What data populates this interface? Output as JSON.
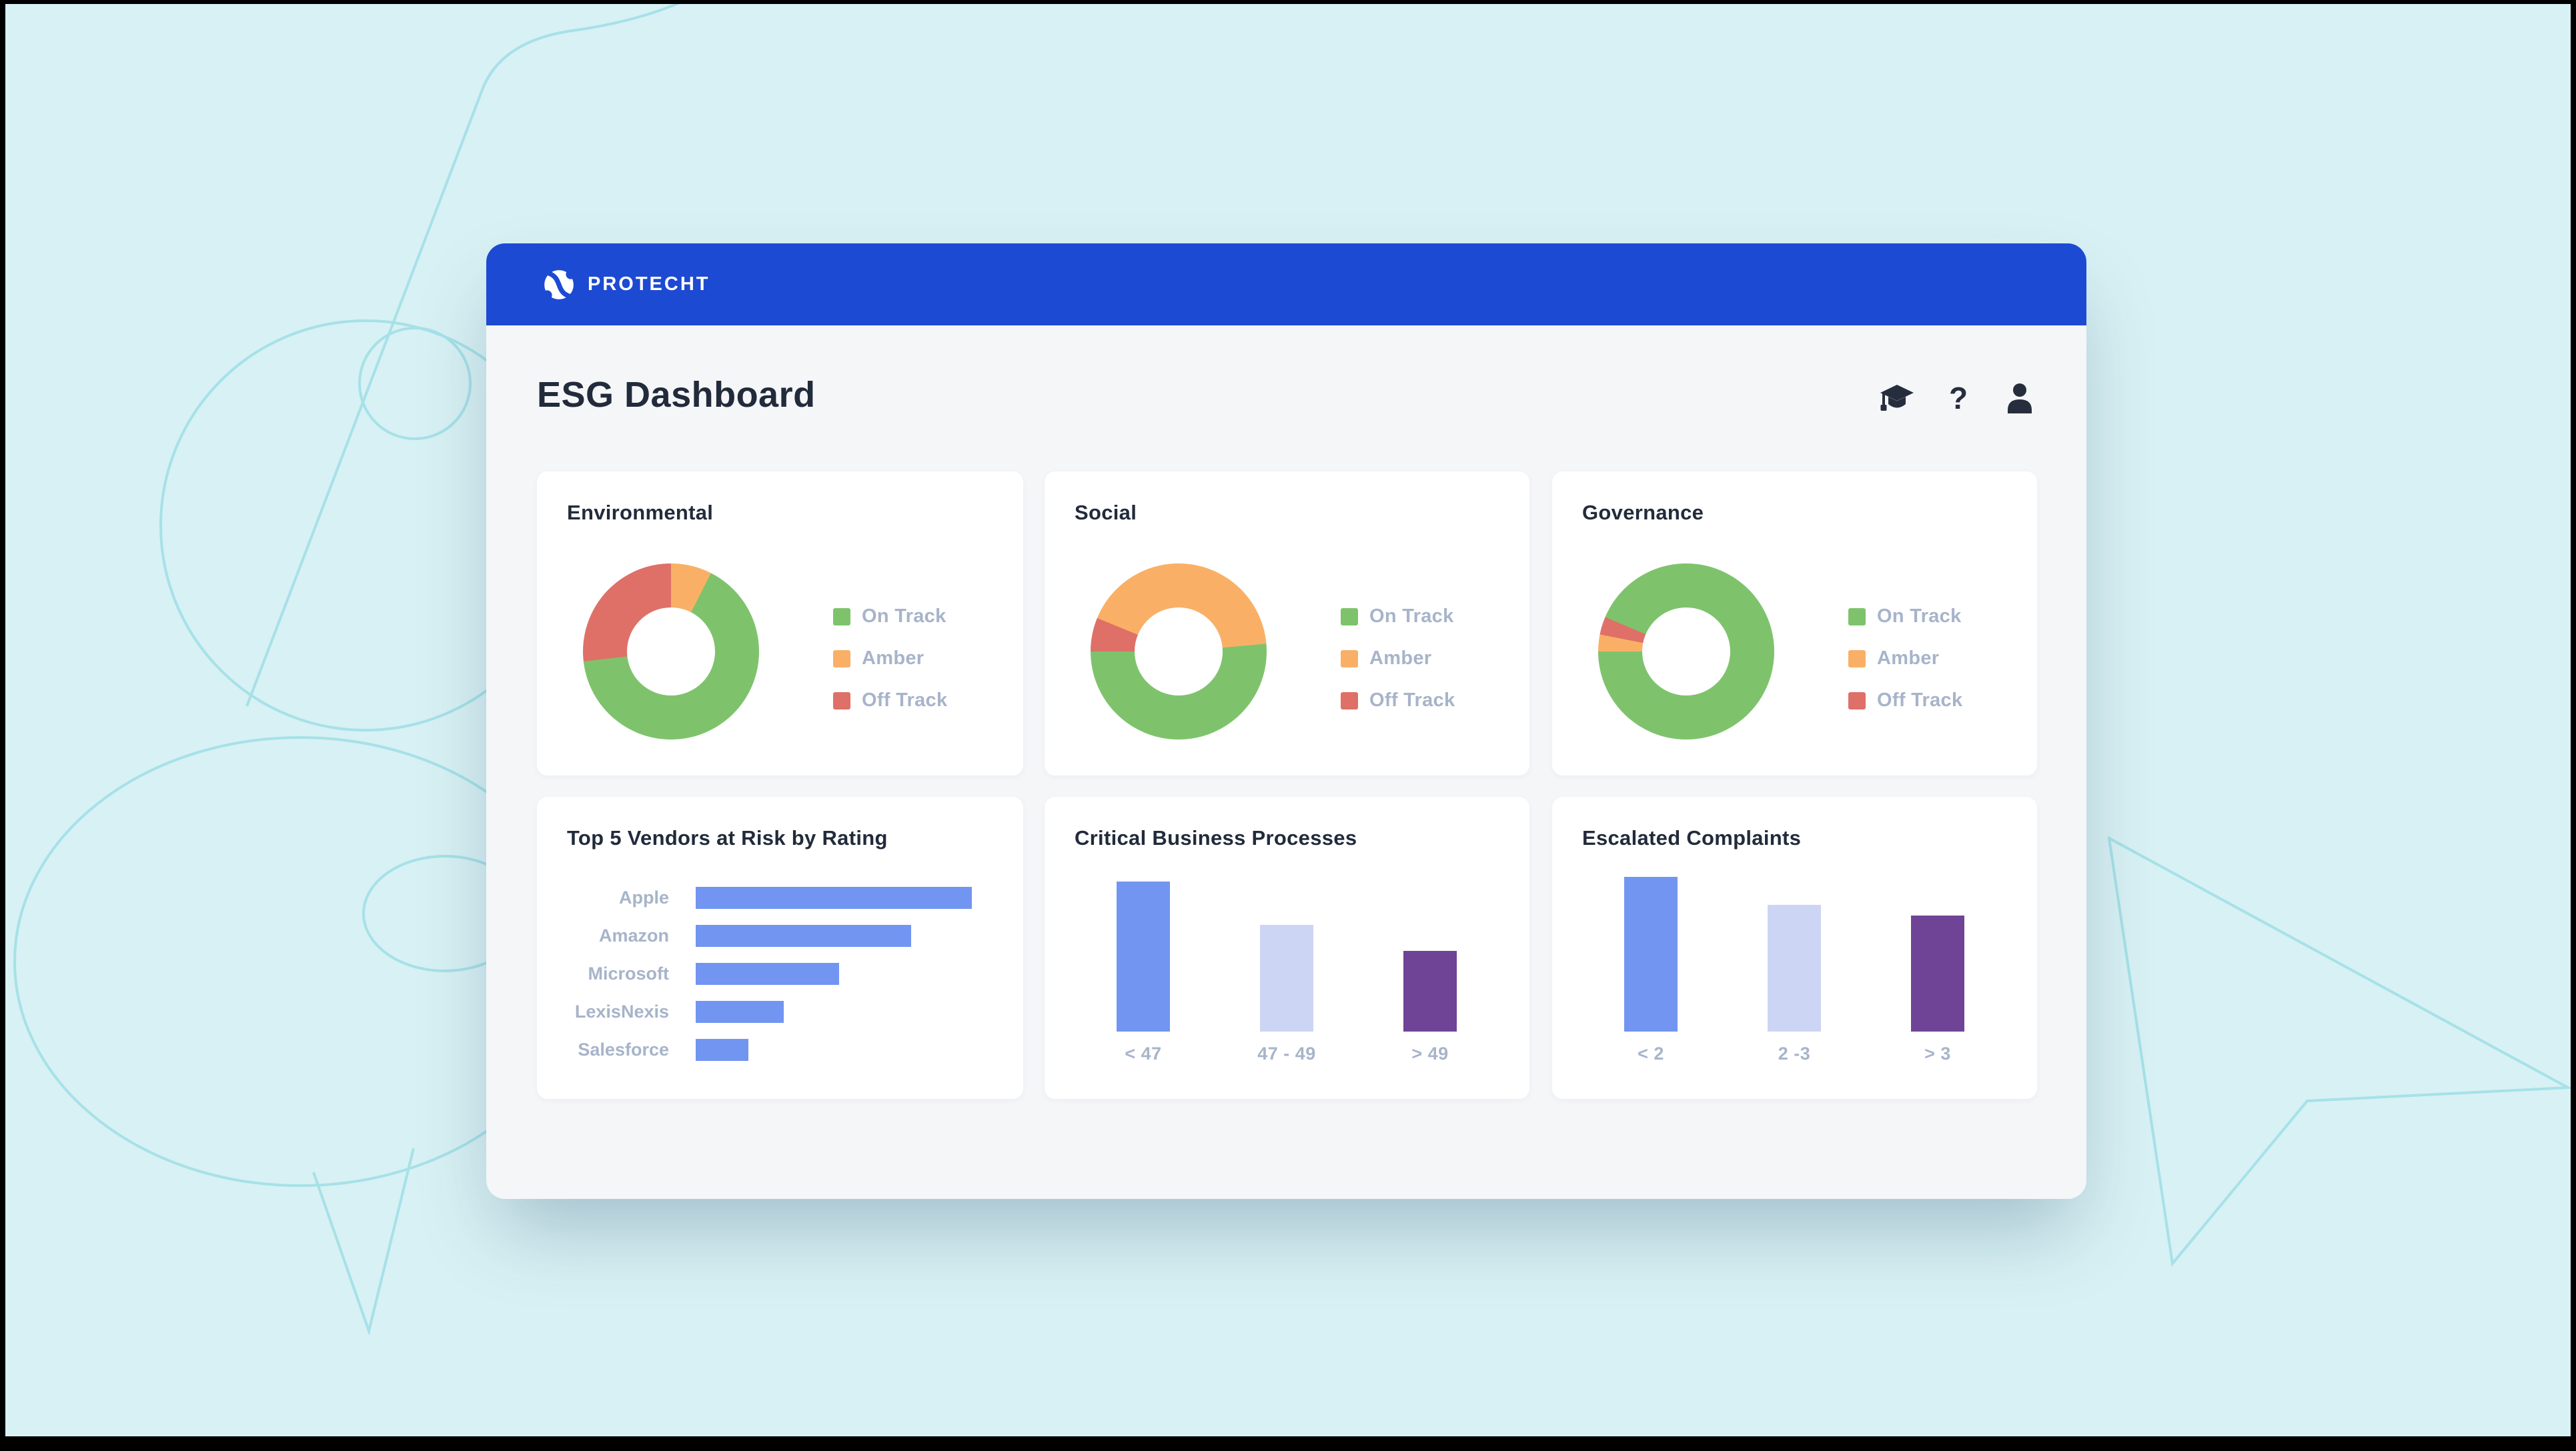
{
  "colors": {
    "pageBg": "#d8f1f4",
    "decoStroke": "#a6e1e8",
    "frame": "#000000",
    "headerBlue": "#1d4ad3",
    "windowBg": "#f5f6f8",
    "cardBg": "#ffffff",
    "titleDark": "#222b3b",
    "mutedText": "#a7b4c9",
    "green": "#7ec36c",
    "amber": "#f9b066",
    "red": "#de7068",
    "barBlue": "#7295f2",
    "barLight": "#ccd5f4",
    "barPurple": "#6f4496",
    "white": "#ffffff"
  },
  "brand": {
    "logo_text": "PROTECHT"
  },
  "header": {
    "title": "ESG Dashboard",
    "icons": [
      {
        "name": "graduation-cap"
      },
      {
        "name": "help"
      },
      {
        "name": "user"
      }
    ]
  },
  "donut_legend": [
    "On Track",
    "Amber",
    "Off Track"
  ],
  "chart_data": [
    {
      "id": "environmental",
      "type": "pie",
      "title": "Environmental",
      "labels": [
        "On Track",
        "Amber",
        "Off Track"
      ],
      "values": [
        66,
        7,
        27
      ],
      "hole": 0.5,
      "legend_position": "right",
      "segments": [
        {
          "color": "amber",
          "from": 0,
          "to": 0.075
        },
        {
          "color": "green",
          "from": 0.075,
          "to": 0.732
        },
        {
          "color": "red",
          "from": 0.732,
          "to": 1
        }
      ]
    },
    {
      "id": "social",
      "type": "pie",
      "title": "Social",
      "labels": [
        "On Track",
        "Amber",
        "Off Track"
      ],
      "values": [
        51,
        43,
        6
      ],
      "hole": 0.5,
      "legend_position": "right",
      "segments": [
        {
          "color": "amber",
          "from": 0,
          "to": 0.236
        },
        {
          "color": "green",
          "from": 0.236,
          "to": 0.75
        },
        {
          "color": "red",
          "from": 0.75,
          "to": 0.812
        },
        {
          "color": "amber",
          "from": 0.812,
          "to": 1
        }
      ]
    },
    {
      "id": "governance",
      "type": "pie",
      "title": "Governance",
      "labels": [
        "On Track",
        "Amber",
        "Off Track"
      ],
      "values": [
        94,
        3,
        3
      ],
      "hole": 0.5,
      "legend_position": "right",
      "segments": [
        {
          "color": "green",
          "from": 0,
          "to": 0.75
        },
        {
          "color": "amber",
          "from": 0.75,
          "to": 0.781
        },
        {
          "color": "red",
          "from": 0.781,
          "to": 0.814
        },
        {
          "color": "green",
          "from": 0.814,
          "to": 1
        }
      ]
    },
    {
      "id": "vendors",
      "type": "bar",
      "orientation": "horizontal",
      "title": "Top 5 Vendors at Risk by Rating",
      "categories": [
        "Apple",
        "Amazon",
        "Microsoft",
        "LexisNexis",
        "Salesforce"
      ],
      "values": [
        100,
        78,
        52,
        32,
        19
      ],
      "value_note": "relative bar length, no numeric axis shown",
      "bar_color": "barBlue"
    },
    {
      "id": "critical",
      "type": "bar",
      "orientation": "vertical",
      "title": "Critical Business Processes",
      "categories": [
        "< 47",
        "47 - 49",
        "> 49"
      ],
      "values": [
        100,
        71,
        54
      ],
      "value_note": "relative bar height, no numeric axis shown",
      "bar_colors": [
        "barBlue",
        "barLight",
        "barPurple"
      ]
    },
    {
      "id": "escalated",
      "type": "bar",
      "orientation": "vertical",
      "title": "Escalated Complaints",
      "categories": [
        "< 2",
        "2 -3",
        "> 3"
      ],
      "values": [
        100,
        82,
        75
      ],
      "value_note": "relative bar height, no numeric axis shown",
      "bar_colors": [
        "barBlue",
        "barLight",
        "barPurple"
      ]
    }
  ]
}
